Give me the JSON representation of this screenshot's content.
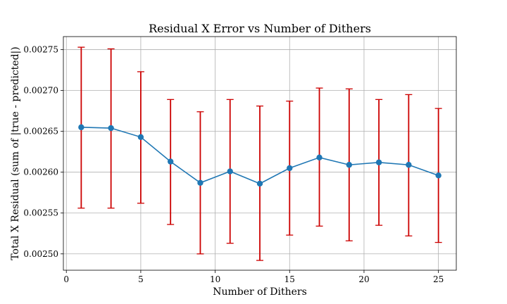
{
  "chart_data": {
    "type": "line",
    "title": "Residual X Error vs Number of Dithers",
    "xlabel": "Number of Dithers",
    "ylabel": "Total X Residual (sum of |true - predicted|)",
    "xlim": [
      -0.2,
      26.2
    ],
    "ylim": [
      0.00248,
      0.002766
    ],
    "x_ticks": [
      0,
      5,
      10,
      15,
      20,
      25
    ],
    "x_tick_labels": [
      "0",
      "5",
      "10",
      "15",
      "20",
      "25"
    ],
    "y_ticks": [
      0.0025,
      0.00255,
      0.0026,
      0.00265,
      0.0027,
      0.00275
    ],
    "y_tick_labels": [
      "0.00250",
      "0.00255",
      "0.00260",
      "0.00265",
      "0.00270",
      "0.00275"
    ],
    "grid": true,
    "series": [
      {
        "color": "#1f77b4",
        "errorbar_color": "#cc0000",
        "x": [
          1,
          3,
          5,
          7,
          9,
          11,
          13,
          15,
          17,
          19,
          21,
          23,
          25
        ],
        "y": [
          0.002655,
          0.002654,
          0.002643,
          0.002613,
          0.002587,
          0.002601,
          0.002586,
          0.002605,
          0.002618,
          0.002609,
          0.002612,
          0.002609,
          0.002596
        ],
        "err_low": [
          0.002556,
          0.002556,
          0.002562,
          0.002536,
          0.0025,
          0.002513,
          0.002492,
          0.002523,
          0.002534,
          0.002516,
          0.002535,
          0.002522,
          0.002514
        ],
        "err_high": [
          0.002753,
          0.002751,
          0.002723,
          0.002689,
          0.002674,
          0.002689,
          0.002681,
          0.002687,
          0.002703,
          0.002702,
          0.002689,
          0.002695,
          0.002678
        ]
      }
    ]
  }
}
